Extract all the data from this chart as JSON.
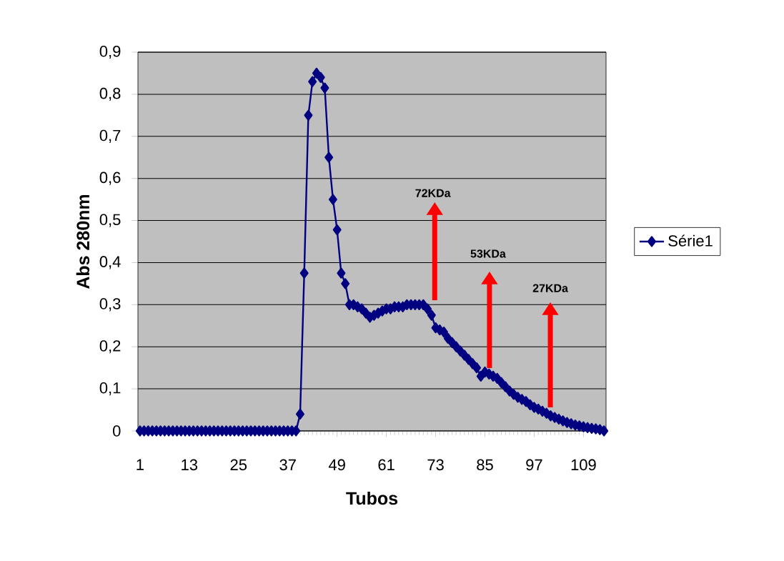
{
  "chart_data": {
    "type": "line",
    "xlabel": "Tubos",
    "ylabel": "Abs 280nm",
    "x": [
      1,
      2,
      3,
      4,
      5,
      6,
      7,
      8,
      9,
      10,
      11,
      12,
      13,
      14,
      15,
      16,
      17,
      18,
      19,
      20,
      21,
      22,
      23,
      24,
      25,
      26,
      27,
      28,
      29,
      30,
      31,
      32,
      33,
      34,
      35,
      36,
      37,
      38,
      39,
      40,
      41,
      42,
      43,
      44,
      45,
      46,
      47,
      48,
      49,
      50,
      51,
      52,
      53,
      54,
      55,
      56,
      57,
      58,
      59,
      60,
      61,
      62,
      63,
      64,
      65,
      66,
      67,
      68,
      69,
      70,
      71,
      72,
      73,
      74,
      75,
      76,
      77,
      78,
      79,
      80,
      81,
      82,
      83,
      84,
      85,
      86,
      87,
      88,
      89,
      90,
      91,
      92,
      93,
      94,
      95,
      96,
      97,
      98,
      99,
      100,
      101,
      102,
      103,
      104,
      105,
      106,
      107,
      108,
      109,
      110,
      111,
      112,
      113,
      114
    ],
    "series": [
      {
        "name": "Série1",
        "color": "#000080",
        "values": [
          0,
          0,
          0,
          0,
          0,
          0,
          0,
          0,
          0,
          0,
          0,
          0,
          0,
          0,
          0,
          0,
          0,
          0,
          0,
          0,
          0,
          0,
          0,
          0,
          0,
          0,
          0,
          0,
          0,
          0,
          0,
          0,
          0,
          0,
          0,
          0,
          0,
          0,
          0,
          0.04,
          0.375,
          0.75,
          0.83,
          0.85,
          0.84,
          0.815,
          0.65,
          0.55,
          0.478,
          0.375,
          0.35,
          0.3,
          0.3,
          0.295,
          0.29,
          0.28,
          0.27,
          0.275,
          0.28,
          0.285,
          0.29,
          0.29,
          0.295,
          0.295,
          0.295,
          0.3,
          0.3,
          0.3,
          0.3,
          0.3,
          0.29,
          0.275,
          0.245,
          0.24,
          0.235,
          0.22,
          0.21,
          0.2,
          0.19,
          0.18,
          0.17,
          0.16,
          0.15,
          0.13,
          0.14,
          0.135,
          0.13,
          0.125,
          0.115,
          0.105,
          0.095,
          0.087,
          0.08,
          0.075,
          0.07,
          0.062,
          0.056,
          0.052,
          0.047,
          0.042,
          0.036,
          0.032,
          0.028,
          0.024,
          0.02,
          0.017,
          0.014,
          0.012,
          0.01,
          0.008,
          0.006,
          0.005,
          0.003,
          0
        ]
      }
    ],
    "xlim": [
      0.5,
      114.5
    ],
    "xticks": [
      1,
      13,
      25,
      37,
      49,
      61,
      73,
      85,
      97,
      109
    ],
    "ylim": [
      0,
      0.9
    ],
    "yticks": [
      0,
      {
        "value": 0.1,
        "label": "0,1"
      },
      {
        "value": 0.2,
        "label": "0,2"
      },
      {
        "value": 0.3,
        "label": "0,3"
      },
      {
        "value": 0.4,
        "label": "0,4"
      },
      {
        "value": 0.5,
        "label": "0,5"
      },
      {
        "value": 0.6,
        "label": "0,6"
      },
      {
        "value": 0.7,
        "label": "0,7"
      },
      {
        "value": 0.8,
        "label": "0,8"
      },
      {
        "value": 0.9,
        "label": "0,9"
      }
    ],
    "grid": "y",
    "legend": "right",
    "marker": "diamond",
    "line_style": "solid",
    "annotations": [
      "72KDa",
      "53KDa",
      "27KDa"
    ]
  }
}
